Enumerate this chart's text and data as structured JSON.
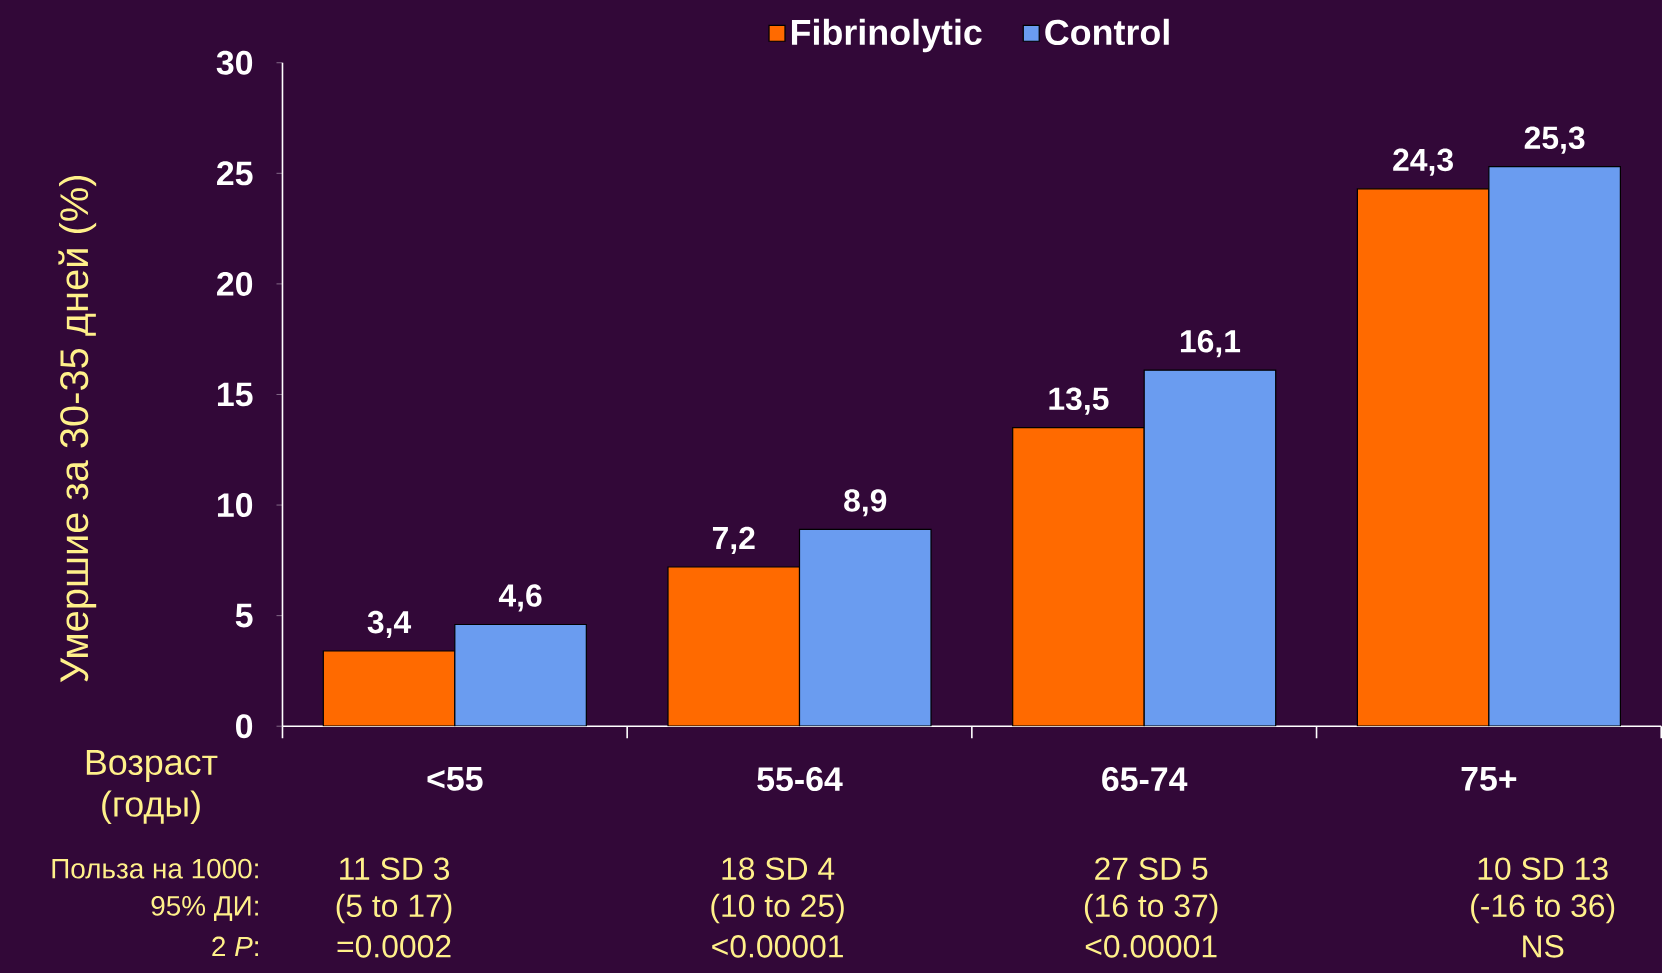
{
  "chart_data": {
    "type": "bar",
    "ylabel": "Умершие за 30-35 дней (%)",
    "xlabel": "Возраст (годы)",
    "categories": [
      "<55",
      "55-64",
      "65-74",
      "75+"
    ],
    "series": [
      {
        "name": "Fibrinolytic",
        "color": "#ff6a00",
        "values": [
          3.4,
          7.2,
          13.5,
          24.3
        ],
        "value_labels": [
          "3,4",
          "7,2",
          "13,5",
          "24,3"
        ]
      },
      {
        "name": "Control",
        "color": "#6a9cf0",
        "values": [
          4.6,
          8.9,
          16.1,
          25.3
        ],
        "value_labels": [
          "4,6",
          "8,9",
          "16,1",
          "25,3"
        ]
      }
    ],
    "ylim": [
      0,
      30
    ],
    "yticks": [
      0,
      5,
      10,
      15,
      20,
      25,
      30
    ],
    "grid": false,
    "legend": "top",
    "annotations": [
      "Польза на  1000:",
      "95% ДИ:",
      "2 *P*:",
      "11 SD 3",
      "(5 to 17)",
      "=0.0002",
      "18 SD 4",
      "(10 to 25)",
      "<0.00001",
      "27 SD 5",
      "(16 to 37)",
      "<0.00001",
      "10 SD 13",
      "(-16 to 36)",
      "NS"
    ]
  }
}
